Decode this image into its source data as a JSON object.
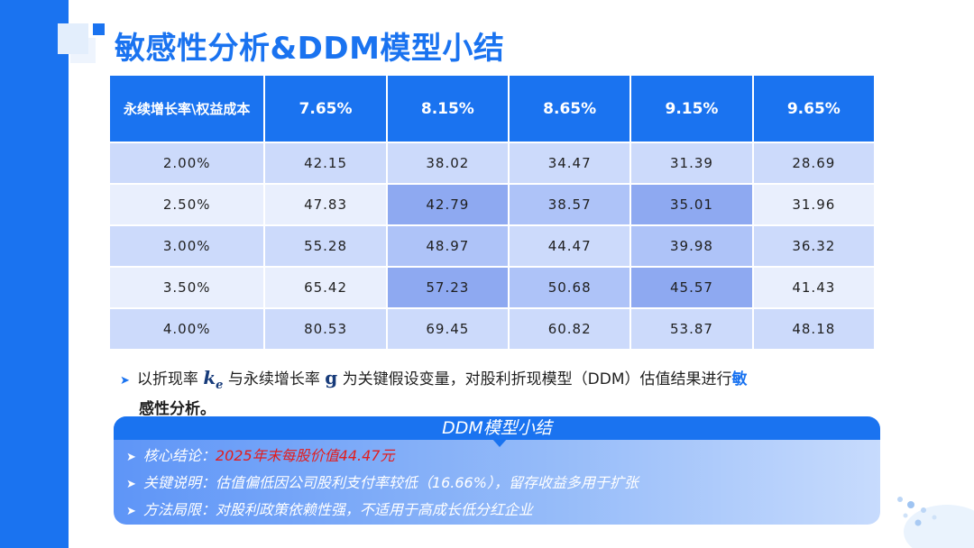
{
  "title": "敏感性分析&DDM模型小结",
  "table": {
    "corner_header": "永续增长率\\权益成本",
    "columns": [
      "7.65%",
      "8.15%",
      "8.65%",
      "9.15%",
      "9.65%"
    ],
    "rows": [
      {
        "label": "2.00%",
        "cells": [
          "42.15",
          "38.02",
          "34.47",
          "31.39",
          "28.69"
        ]
      },
      {
        "label": "2.50%",
        "cells": [
          "47.83",
          "42.79",
          "38.57",
          "35.01",
          "31.96"
        ]
      },
      {
        "label": "3.00%",
        "cells": [
          "55.28",
          "48.97",
          "44.47",
          "39.98",
          "36.32"
        ]
      },
      {
        "label": "3.50%",
        "cells": [
          "65.42",
          "57.23",
          "50.68",
          "45.57",
          "41.43"
        ]
      },
      {
        "label": "4.00%",
        "cells": [
          "80.53",
          "69.45",
          "60.82",
          "53.87",
          "48.18"
        ]
      }
    ],
    "colors": {
      "header": "#1a73f0",
      "row_light": "#e9effd",
      "row_mid": "#ccdafb",
      "highlight_mid": "#aec3f8",
      "highlight_dark": "#8ea9f1"
    }
  },
  "bullet": {
    "text_a": "以折现率",
    "ke_base": "k",
    "ke_sub": "e",
    "text_b": "与永续增长率",
    "g": "g",
    "text_c": "为关键假设变量，对股利折现模型（DDM）估值结果进行",
    "highlight_1": "敏",
    "highlight_2": "感性分析",
    "text_end": "。"
  },
  "summary": {
    "header": "DDM模型小结",
    "items": [
      {
        "label": "核心结论：",
        "value": "2025年末每股价值44.47元"
      },
      {
        "label": "关键说明：",
        "value": "估值偏低因公司股利支付率较低（16.66%），留存收益多用于扩张"
      },
      {
        "label": "方法局限：",
        "value": "对股利政策依赖性强，不适用于高成长低分红企业"
      }
    ]
  },
  "icons": {
    "bullet": "triangle-right-icon"
  }
}
